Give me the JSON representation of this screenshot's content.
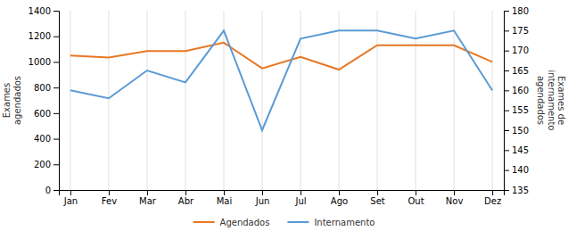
{
  "chart_data": {
    "type": "line",
    "categories": [
      "Jan",
      "Fev",
      "Mar",
      "Abr",
      "Mai",
      "Jun",
      "Jul",
      "Ago",
      "Set",
      "Out",
      "Nov",
      "Dez"
    ],
    "series": [
      {
        "name": "Agendados",
        "color": "#E87722",
        "values": [
          1050,
          1035,
          1085,
          1085,
          1150,
          950,
          1040,
          940,
          1130,
          1130,
          1130,
          1000
        ]
      },
      {
        "name": "Internamento",
        "color": "#5B9BD5",
        "axis": "y2",
        "values": [
          160,
          158,
          165,
          162,
          175,
          150,
          173,
          175,
          175,
          173,
          175,
          160
        ]
      }
    ],
    "y_label": "Exames\nagendados",
    "y2_label": "Exames de\ninternamento\nagendados",
    "ylim": [
      0,
      1400
    ],
    "yticks": [
      0,
      200,
      400,
      600,
      800,
      1000,
      1200,
      1400
    ],
    "y2lim": [
      135,
      180
    ],
    "y2ticks": [
      135,
      140,
      145,
      150,
      155,
      160,
      165,
      170,
      175,
      180
    ],
    "grid": "x",
    "legend": "bottom"
  }
}
